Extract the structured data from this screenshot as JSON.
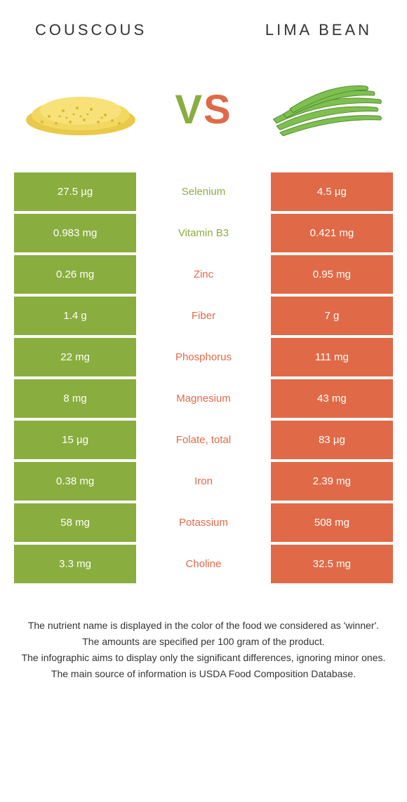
{
  "colors": {
    "left": "#8aad3f",
    "right": "#e06a47",
    "bg": "#ffffff"
  },
  "header": {
    "left": "Couscous",
    "right": "Lima bean"
  },
  "vs": {
    "v": "V",
    "s": "S"
  },
  "rows": [
    {
      "left": "27.5 µg",
      "label": "Selenium",
      "right": "4.5 µg",
      "winner": "left"
    },
    {
      "left": "0.983 mg",
      "label": "Vitamin B3",
      "right": "0.421 mg",
      "winner": "left"
    },
    {
      "left": "0.26 mg",
      "label": "Zinc",
      "right": "0.95 mg",
      "winner": "right"
    },
    {
      "left": "1.4 g",
      "label": "Fiber",
      "right": "7 g",
      "winner": "right"
    },
    {
      "left": "22 mg",
      "label": "Phosphorus",
      "right": "111 mg",
      "winner": "right"
    },
    {
      "left": "8 mg",
      "label": "Magnesium",
      "right": "43 mg",
      "winner": "right"
    },
    {
      "left": "15 µg",
      "label": "Folate, total",
      "right": "83 µg",
      "winner": "right"
    },
    {
      "left": "0.38 mg",
      "label": "Iron",
      "right": "2.39 mg",
      "winner": "right"
    },
    {
      "left": "58 mg",
      "label": "Potassium",
      "right": "508 mg",
      "winner": "right"
    },
    {
      "left": "3.3 mg",
      "label": "Choline",
      "right": "32.5 mg",
      "winner": "right"
    }
  ],
  "footnotes": [
    "The nutrient name is displayed in the color of the food we considered as 'winner'.",
    "The amounts are specified per 100 gram of the product.",
    "The infographic aims to display only the significant differences, ignoring minor ones.",
    "The main source of information is USDA Food Composition Database."
  ]
}
